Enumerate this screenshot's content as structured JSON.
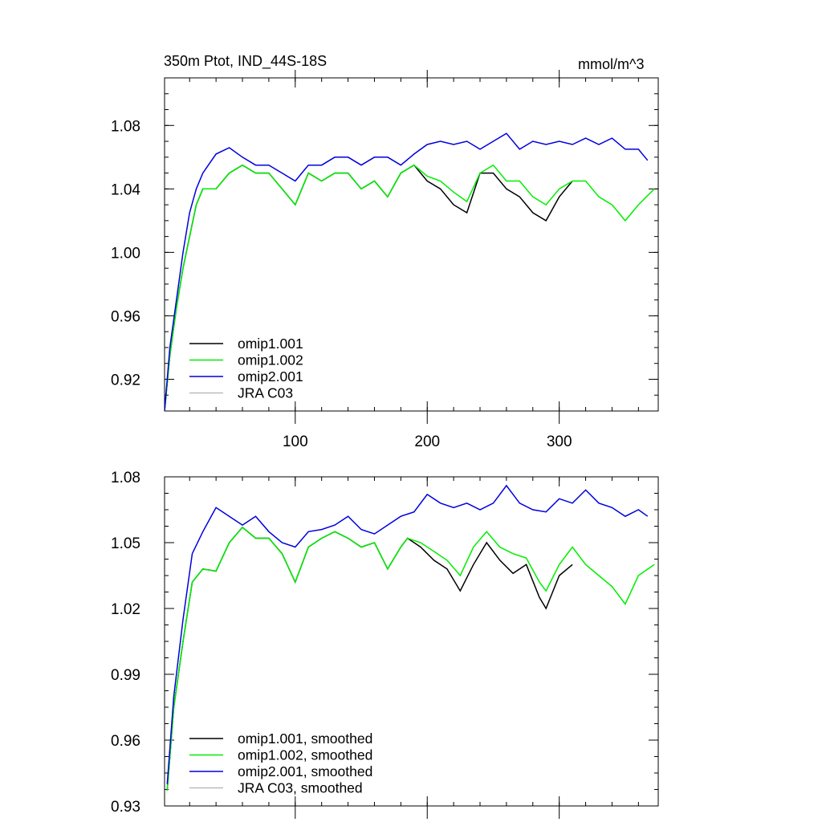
{
  "figure": {
    "title_left": "350m Ptot, IND_44S-18S",
    "title_right": "mmol/m^3"
  },
  "chart_data": [
    {
      "type": "line",
      "name": "raw",
      "x_ticks": [
        100,
        200,
        300
      ],
      "xlim": [
        1,
        375
      ],
      "ylim": [
        0.9,
        1.11
      ],
      "y_ticks": [
        0.92,
        0.96,
        1.0,
        1.04,
        1.08
      ],
      "y_tick_labels": [
        "0.92",
        "0.96",
        "1.00",
        "1.04",
        "1.08"
      ],
      "x_tick_labels": [
        "100",
        "200",
        "300"
      ],
      "series": [
        {
          "name": "omip1.001",
          "color": "#000000",
          "x": [
            1,
            5,
            10,
            15,
            20,
            25,
            30,
            40,
            50,
            60,
            70,
            80,
            90,
            100,
            110,
            120,
            130,
            140,
            150,
            160,
            170,
            180,
            190,
            200,
            210,
            220,
            230,
            240,
            250,
            260,
            270,
            280,
            290,
            300,
            310
          ],
          "y": [
            0.9,
            0.935,
            0.965,
            0.99,
            1.01,
            1.03,
            1.04,
            1.04,
            1.05,
            1.055,
            1.05,
            1.05,
            1.04,
            1.03,
            1.05,
            1.045,
            1.05,
            1.05,
            1.04,
            1.045,
            1.035,
            1.05,
            1.055,
            1.045,
            1.04,
            1.03,
            1.025,
            1.05,
            1.05,
            1.04,
            1.035,
            1.025,
            1.02,
            1.035,
            1.045
          ]
        },
        {
          "name": "omip1.002",
          "color": "#00ee00",
          "x": [
            1,
            5,
            10,
            15,
            20,
            25,
            30,
            40,
            50,
            60,
            70,
            80,
            90,
            100,
            110,
            120,
            130,
            140,
            150,
            160,
            170,
            180,
            190,
            200,
            210,
            220,
            230,
            240,
            250,
            260,
            270,
            280,
            290,
            300,
            310,
            320,
            330,
            340,
            350,
            360,
            372
          ],
          "y": [
            0.9,
            0.935,
            0.965,
            0.99,
            1.01,
            1.03,
            1.04,
            1.04,
            1.05,
            1.055,
            1.05,
            1.05,
            1.04,
            1.03,
            1.05,
            1.045,
            1.05,
            1.05,
            1.04,
            1.045,
            1.035,
            1.05,
            1.055,
            1.048,
            1.045,
            1.038,
            1.032,
            1.05,
            1.055,
            1.045,
            1.045,
            1.035,
            1.03,
            1.04,
            1.045,
            1.045,
            1.035,
            1.03,
            1.02,
            1.03,
            1.04
          ]
        },
        {
          "name": "omip2.001",
          "color": "#0000dd",
          "x": [
            1,
            5,
            10,
            15,
            20,
            25,
            30,
            40,
            50,
            60,
            70,
            80,
            90,
            100,
            110,
            120,
            130,
            140,
            150,
            160,
            170,
            180,
            190,
            200,
            210,
            220,
            230,
            240,
            250,
            260,
            270,
            280,
            290,
            300,
            310,
            320,
            330,
            340,
            350,
            360,
            367
          ],
          "y": [
            0.9,
            0.94,
            0.97,
            1.0,
            1.025,
            1.04,
            1.05,
            1.062,
            1.066,
            1.06,
            1.055,
            1.055,
            1.05,
            1.045,
            1.055,
            1.055,
            1.06,
            1.06,
            1.055,
            1.06,
            1.06,
            1.055,
            1.062,
            1.068,
            1.07,
            1.068,
            1.07,
            1.065,
            1.07,
            1.075,
            1.065,
            1.07,
            1.068,
            1.07,
            1.068,
            1.072,
            1.068,
            1.072,
            1.065,
            1.065,
            1.058
          ]
        },
        {
          "name": "JRA C03",
          "color": "#bbbbbb",
          "x": [],
          "y": []
        }
      ],
      "legend": [
        "omip1.001",
        "omip1.002",
        "omip2.001",
        "JRA C03"
      ],
      "legend_position": "bottom-left"
    },
    {
      "type": "line",
      "name": "smoothed",
      "xlim": [
        1,
        375
      ],
      "ylim": [
        0.93,
        1.08
      ],
      "y_ticks": [
        0.93,
        0.96,
        0.99,
        1.02,
        1.05,
        1.08
      ],
      "y_tick_labels": [
        "0.93",
        "0.96",
        "0.99",
        "1.02",
        "1.05",
        "1.08"
      ],
      "x_ticks": [
        100,
        200,
        300
      ],
      "x_tick_labels": [],
      "series": [
        {
          "name": "omip1.001, smoothed",
          "color": "#000000",
          "x": [
            3,
            8,
            15,
            22,
            30,
            40,
            50,
            60,
            70,
            80,
            90,
            100,
            110,
            120,
            130,
            140,
            150,
            160,
            170,
            180,
            185,
            195,
            205,
            215,
            225,
            235,
            245,
            255,
            265,
            275,
            285,
            290,
            300,
            310
          ],
          "y": [
            0.937,
            0.975,
            1.005,
            1.032,
            1.038,
            1.037,
            1.05,
            1.057,
            1.052,
            1.052,
            1.045,
            1.032,
            1.048,
            1.052,
            1.055,
            1.052,
            1.048,
            1.05,
            1.038,
            1.048,
            1.052,
            1.048,
            1.042,
            1.038,
            1.028,
            1.04,
            1.05,
            1.042,
            1.036,
            1.04,
            1.025,
            1.02,
            1.035,
            1.04
          ]
        },
        {
          "name": "omip1.002, smoothed",
          "color": "#00ee00",
          "x": [
            3,
            8,
            15,
            22,
            30,
            40,
            50,
            60,
            70,
            80,
            90,
            100,
            110,
            120,
            130,
            140,
            150,
            160,
            170,
            180,
            185,
            195,
            205,
            215,
            225,
            235,
            245,
            255,
            265,
            275,
            285,
            290,
            300,
            310,
            320,
            330,
            340,
            350,
            360,
            372
          ],
          "y": [
            0.937,
            0.975,
            1.005,
            1.032,
            1.038,
            1.037,
            1.05,
            1.057,
            1.052,
            1.052,
            1.045,
            1.032,
            1.048,
            1.052,
            1.055,
            1.052,
            1.048,
            1.05,
            1.038,
            1.048,
            1.052,
            1.05,
            1.046,
            1.042,
            1.035,
            1.048,
            1.055,
            1.048,
            1.045,
            1.043,
            1.032,
            1.028,
            1.04,
            1.048,
            1.04,
            1.035,
            1.03,
            1.022,
            1.035,
            1.04
          ]
        },
        {
          "name": "omip2.001, smoothed",
          "color": "#0000dd",
          "x": [
            3,
            8,
            15,
            22,
            30,
            40,
            50,
            60,
            70,
            80,
            90,
            100,
            110,
            120,
            130,
            140,
            150,
            160,
            170,
            180,
            190,
            200,
            210,
            220,
            230,
            240,
            250,
            260,
            270,
            280,
            290,
            300,
            310,
            320,
            330,
            340,
            350,
            360,
            367
          ],
          "y": [
            0.94,
            0.98,
            1.015,
            1.045,
            1.055,
            1.066,
            1.062,
            1.058,
            1.062,
            1.055,
            1.05,
            1.048,
            1.055,
            1.056,
            1.058,
            1.062,
            1.056,
            1.054,
            1.058,
            1.062,
            1.064,
            1.072,
            1.068,
            1.066,
            1.068,
            1.065,
            1.068,
            1.076,
            1.068,
            1.065,
            1.064,
            1.07,
            1.068,
            1.074,
            1.068,
            1.066,
            1.062,
            1.065,
            1.062
          ]
        },
        {
          "name": "JRA C03, smoothed",
          "color": "#bbbbbb",
          "x": [],
          "y": []
        }
      ],
      "legend": [
        "omip1.001, smoothed",
        "omip1.002, smoothed",
        "omip2.001, smoothed",
        "JRA C03, smoothed"
      ],
      "legend_position": "bottom-left"
    }
  ]
}
